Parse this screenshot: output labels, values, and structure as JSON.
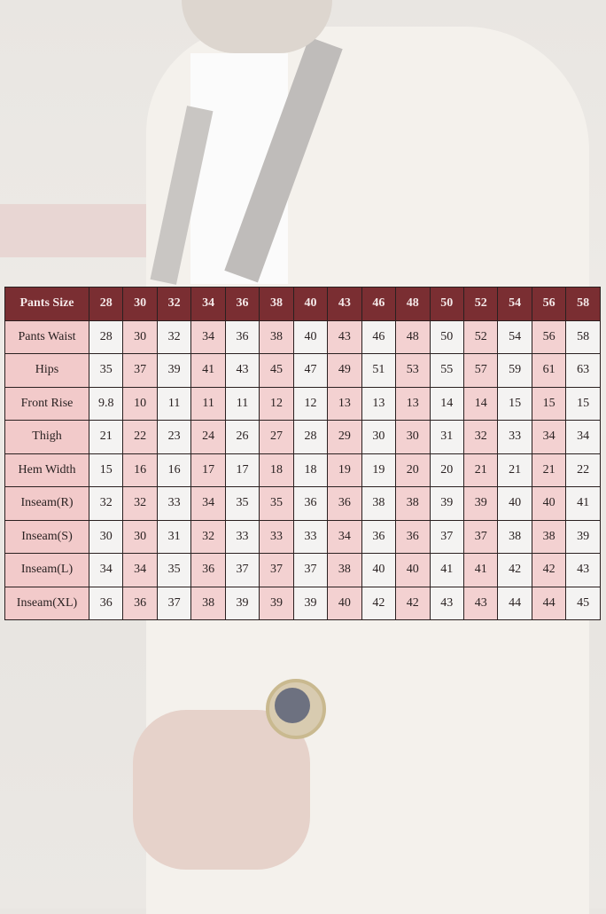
{
  "colors": {
    "header": "#7a2e32",
    "pink": "#f3d1d1",
    "white": "#f4f3f2"
  },
  "table": {
    "header": [
      "Pants Size",
      "28",
      "30",
      "32",
      "34",
      "36",
      "38",
      "40",
      "43",
      "46",
      "48",
      "50",
      "52",
      "54",
      "56",
      "58"
    ],
    "rows": [
      [
        "Pants Waist",
        "28",
        "30",
        "32",
        "34",
        "36",
        "38",
        "40",
        "43",
        "46",
        "48",
        "50",
        "52",
        "54",
        "56",
        "58"
      ],
      [
        "Hips",
        "35",
        "37",
        "39",
        "41",
        "43",
        "45",
        "47",
        "49",
        "51",
        "53",
        "55",
        "57",
        "59",
        "61",
        "63"
      ],
      [
        "Front Rise",
        "9.8",
        "10",
        "11",
        "11",
        "11",
        "12",
        "12",
        "13",
        "13",
        "13",
        "14",
        "14",
        "15",
        "15",
        "15"
      ],
      [
        "Thigh",
        "21",
        "22",
        "23",
        "24",
        "26",
        "27",
        "28",
        "29",
        "30",
        "30",
        "31",
        "32",
        "33",
        "34",
        "34"
      ],
      [
        "Hem Width",
        "15",
        "16",
        "16",
        "17",
        "17",
        "18",
        "18",
        "19",
        "19",
        "20",
        "20",
        "21",
        "21",
        "21",
        "22"
      ],
      [
        "Inseam(R)",
        "32",
        "32",
        "33",
        "34",
        "35",
        "35",
        "36",
        "36",
        "38",
        "38",
        "39",
        "39",
        "40",
        "40",
        "41"
      ],
      [
        "Inseam(S)",
        "30",
        "30",
        "31",
        "32",
        "33",
        "33",
        "33",
        "34",
        "36",
        "36",
        "37",
        "37",
        "38",
        "38",
        "39"
      ],
      [
        "Inseam(L)",
        "34",
        "34",
        "35",
        "36",
        "37",
        "37",
        "37",
        "38",
        "40",
        "40",
        "41",
        "41",
        "42",
        "42",
        "43"
      ],
      [
        "Inseam(XL)",
        "36",
        "36",
        "37",
        "38",
        "39",
        "39",
        "39",
        "40",
        "42",
        "42",
        "43",
        "43",
        "44",
        "44",
        "45"
      ]
    ]
  }
}
